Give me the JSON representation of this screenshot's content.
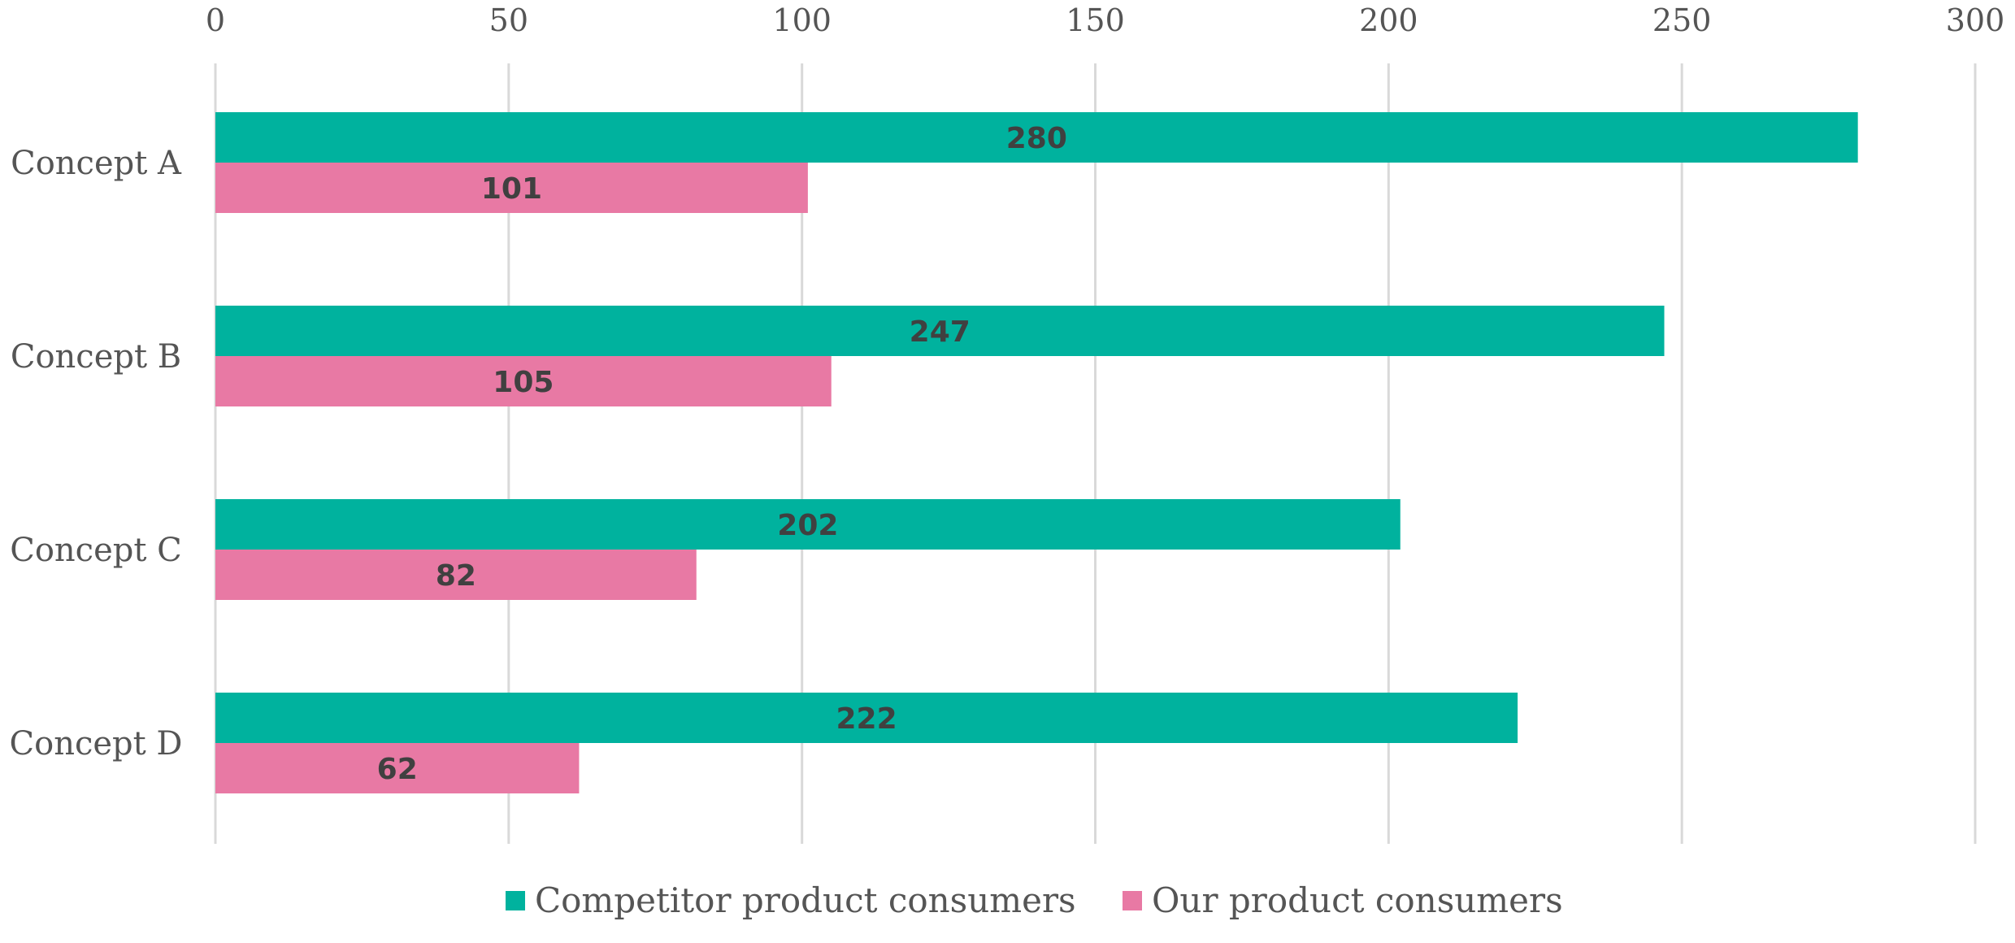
{
  "chart_data": {
    "type": "bar",
    "orientation": "horizontal",
    "title": "",
    "xlabel": "",
    "ylabel": "",
    "categories": [
      "Concept A",
      "Concept B",
      "Concept C",
      "Concept D"
    ],
    "series": [
      {
        "name": "Competitor product consumers",
        "values": [
          280,
          247,
          202,
          222
        ],
        "color": "#00B29E"
      },
      {
        "name": "Our product consumers",
        "values": [
          101,
          105,
          82,
          62
        ],
        "color": "#E879A4"
      }
    ],
    "xlim": [
      0,
      300
    ],
    "xticks": [
      0,
      50,
      100,
      150,
      200,
      250,
      300
    ],
    "x_axis_position": "top",
    "grid": "vertical",
    "data_labels": true,
    "legend": "bottom-center"
  },
  "colors": {
    "gridline": "#D9D9D9",
    "label_text": "#555555",
    "data_label_text": "#404040"
  }
}
